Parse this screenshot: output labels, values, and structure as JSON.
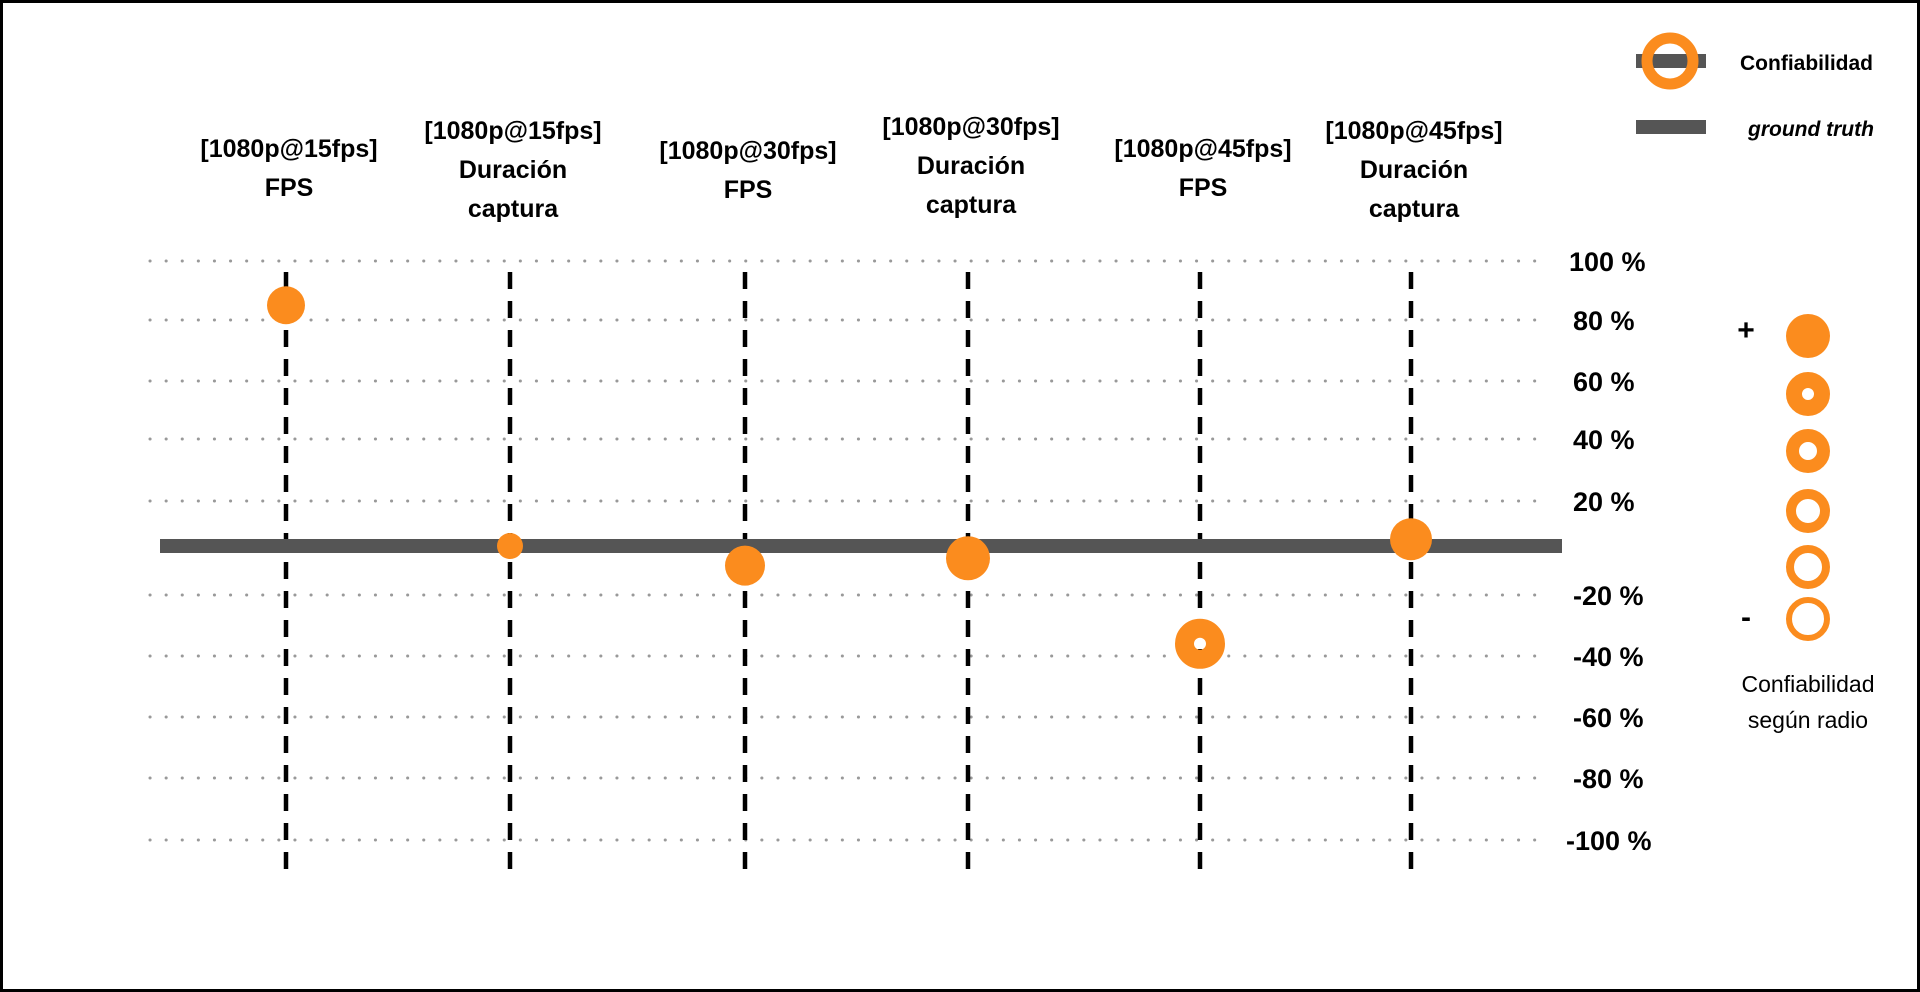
{
  "chart_data": {
    "type": "scatter",
    "categories": [
      [
        "[1080p@15fps]",
        "FPS"
      ],
      [
        "[1080p@15fps]",
        "Duración",
        "captura"
      ],
      [
        "[1080p@30fps]",
        "FPS"
      ],
      [
        "[1080p@30fps]",
        "Duración",
        "captura"
      ],
      [
        "[1080p@45fps]",
        "FPS"
      ],
      [
        "[1080p@45fps]",
        "Duración",
        "captura"
      ]
    ],
    "y_ticks": [
      {
        "value": 100,
        "label": "100 %"
      },
      {
        "value": 80,
        "label": "80 %"
      },
      {
        "value": 60,
        "label": "60 %"
      },
      {
        "value": 40,
        "label": "40 %"
      },
      {
        "value": 20,
        "label": "20 %"
      },
      {
        "value": -20,
        "label": "-20 %"
      },
      {
        "value": -40,
        "label": "-40 %"
      },
      {
        "value": -60,
        "label": "-60 %"
      },
      {
        "value": -80,
        "label": "-80 %"
      },
      {
        "value": -100,
        "label": "-100 %"
      }
    ],
    "ylim": [
      -100,
      100
    ],
    "ground_truth": 0,
    "points": [
      {
        "category": 0,
        "value": 85,
        "reliability": 5
      },
      {
        "category": 1,
        "value": 0,
        "reliability": 5
      },
      {
        "category": 2,
        "value": -8,
        "reliability": 5
      },
      {
        "category": 3,
        "value": -5,
        "reliability": 5
      },
      {
        "category": 4,
        "value": -36,
        "reliability": 4
      },
      {
        "category": 5,
        "value": 3,
        "reliability": 5
      }
    ],
    "legend": {
      "reliability_label": "Confiabilidad",
      "ground_truth_label": "ground truth",
      "scale_plus": "+",
      "scale_minus": "-",
      "scale_caption": [
        "Confiabilidad",
        "según radio"
      ]
    },
    "colors": {
      "marker": "#fb8c1e",
      "ground_truth": "#555555",
      "grid": "#999999",
      "category_line": "#000000"
    }
  }
}
